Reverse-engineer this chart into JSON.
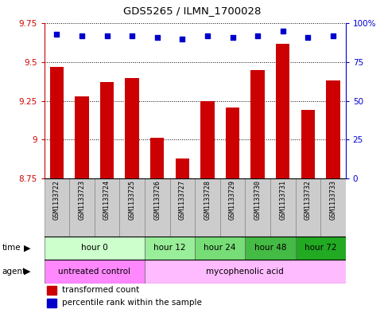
{
  "title": "GDS5265 / ILMN_1700028",
  "samples": [
    "GSM1133722",
    "GSM1133723",
    "GSM1133724",
    "GSM1133725",
    "GSM1133726",
    "GSM1133727",
    "GSM1133728",
    "GSM1133729",
    "GSM1133730",
    "GSM1133731",
    "GSM1133732",
    "GSM1133733"
  ],
  "bar_values": [
    9.47,
    9.28,
    9.37,
    9.4,
    9.01,
    8.88,
    9.25,
    9.21,
    9.45,
    9.62,
    9.19,
    9.38
  ],
  "dot_values": [
    93,
    92,
    92,
    92,
    91,
    90,
    92,
    91,
    92,
    95,
    91,
    92
  ],
  "ylim_left": [
    8.75,
    9.75
  ],
  "ylim_right": [
    0,
    100
  ],
  "yticks_left": [
    8.75,
    9.0,
    9.25,
    9.5,
    9.75
  ],
  "yticks_right": [
    0,
    25,
    50,
    75,
    100
  ],
  "ytick_labels_left": [
    "8.75",
    "9",
    "9.25",
    "9.5",
    "9.75"
  ],
  "ytick_labels_right": [
    "0",
    "25",
    "50",
    "75",
    "100%"
  ],
  "bar_color": "#cc0000",
  "dot_color": "#0000cc",
  "time_groups": [
    {
      "label": "hour 0",
      "start": 0,
      "end": 4,
      "color": "#ccffcc"
    },
    {
      "label": "hour 12",
      "start": 4,
      "end": 6,
      "color": "#99ee99"
    },
    {
      "label": "hour 24",
      "start": 6,
      "end": 8,
      "color": "#77dd77"
    },
    {
      "label": "hour 48",
      "start": 8,
      "end": 10,
      "color": "#44bb44"
    },
    {
      "label": "hour 72",
      "start": 10,
      "end": 12,
      "color": "#22aa22"
    }
  ],
  "agent_groups": [
    {
      "label": "untreated control",
      "start": 0,
      "end": 4,
      "color": "#ff88ff"
    },
    {
      "label": "mycophenolic acid",
      "start": 4,
      "end": 12,
      "color": "#ffbbff"
    }
  ],
  "legend_items": [
    {
      "label": "transformed count",
      "color": "#cc0000"
    },
    {
      "label": "percentile rank within the sample",
      "color": "#0000cc"
    }
  ],
  "left_axis_color": "#cc0000",
  "right_axis_color": "#0000cc",
  "sample_bg_color": "#cccccc"
}
